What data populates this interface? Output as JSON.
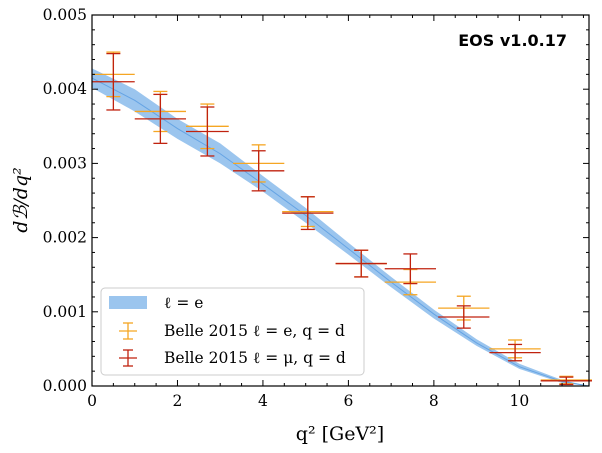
{
  "chart_data": {
    "type": "scatter",
    "title": "",
    "xlabel": "q² [GeV²]",
    "ylabel": "dℬ/dq²",
    "xlim": [
      0,
      11.63
    ],
    "ylim": [
      0,
      0.005
    ],
    "x_ticks": [
      "0",
      "2",
      "4",
      "6",
      "8",
      "10"
    ],
    "y_ticks": [
      "0.000",
      "0.001",
      "0.002",
      "0.003",
      "0.004",
      "0.005"
    ],
    "watermark": "EOS v1.0.17",
    "legend_position": "bottom-left",
    "colors": {
      "band": "#9bc5ee",
      "band_center": "#4f95df",
      "belle_e": "#f5a623",
      "belle_mu": "#c0220f",
      "watermark": "#f4a582"
    },
    "band": {
      "name": "ℓ = e",
      "x": [
        0,
        1,
        2,
        3,
        4,
        5,
        6,
        7,
        8,
        9,
        10,
        11,
        11.63
      ],
      "upper": [
        0.00428,
        0.004,
        0.0036,
        0.00327,
        0.00283,
        0.0024,
        0.00193,
        0.00147,
        0.00103,
        0.00063,
        0.0003,
        8e-05,
        0.0
      ],
      "lower": [
        0.00402,
        0.0037,
        0.00333,
        0.003,
        0.00262,
        0.0022,
        0.00177,
        0.00133,
        0.00091,
        0.00054,
        0.00023,
        4e-05,
        0.0
      ],
      "center": [
        0.00415,
        0.00385,
        0.00347,
        0.00313,
        0.00272,
        0.0023,
        0.00185,
        0.0014,
        0.00097,
        0.00058,
        0.00026,
        6e-05,
        0.0
      ]
    },
    "series": [
      {
        "name": "Belle 2015 ℓ = e, q = d",
        "points": [
          {
            "x": 0.5,
            "xerr": 0.5,
            "y": 0.0042,
            "yerr": 0.0003
          },
          {
            "x": 1.6,
            "xerr": 0.6,
            "y": 0.0037,
            "yerr": 0.00027
          },
          {
            "x": 2.7,
            "xerr": 0.5,
            "y": 0.0035,
            "yerr": 0.0003
          },
          {
            "x": 3.9,
            "xerr": 0.6,
            "y": 0.003,
            "yerr": 0.00025
          },
          {
            "x": 5.05,
            "xerr": 0.6,
            "y": 0.00235,
            "yerr": 0.0002
          },
          {
            "x": 6.3,
            "xerr": 0.6,
            "y": 0.00165,
            "yerr": 0.00018
          },
          {
            "x": 7.45,
            "xerr": 0.6,
            "y": 0.0014,
            "yerr": 0.00017
          },
          {
            "x": 8.7,
            "xerr": 0.6,
            "y": 0.00105,
            "yerr": 0.00016
          },
          {
            "x": 9.9,
            "xerr": 0.6,
            "y": 0.0005,
            "yerr": 0.00012
          },
          {
            "x": 11.1,
            "xerr": 0.6,
            "y": 8e-05,
            "yerr": 5e-05
          }
        ]
      },
      {
        "name": "Belle 2015 ℓ = μ, q = d",
        "points": [
          {
            "x": 0.5,
            "xerr": 0.5,
            "y": 0.0041,
            "yerr": 0.00038
          },
          {
            "x": 1.6,
            "xerr": 0.6,
            "y": 0.0036,
            "yerr": 0.00033
          },
          {
            "x": 2.7,
            "xerr": 0.5,
            "y": 0.00343,
            "yerr": 0.00033
          },
          {
            "x": 3.9,
            "xerr": 0.6,
            "y": 0.0029,
            "yerr": 0.00027
          },
          {
            "x": 5.05,
            "xerr": 0.6,
            "y": 0.00233,
            "yerr": 0.00022
          },
          {
            "x": 6.3,
            "xerr": 0.6,
            "y": 0.00165,
            "yerr": 0.00018
          },
          {
            "x": 7.45,
            "xerr": 0.6,
            "y": 0.00158,
            "yerr": 0.0002
          },
          {
            "x": 8.7,
            "xerr": 0.6,
            "y": 0.00093,
            "yerr": 0.00015
          },
          {
            "x": 9.9,
            "xerr": 0.6,
            "y": 0.00045,
            "yerr": 0.00011
          },
          {
            "x": 11.1,
            "xerr": 0.6,
            "y": 7e-05,
            "yerr": 5e-05
          }
        ]
      }
    ]
  }
}
